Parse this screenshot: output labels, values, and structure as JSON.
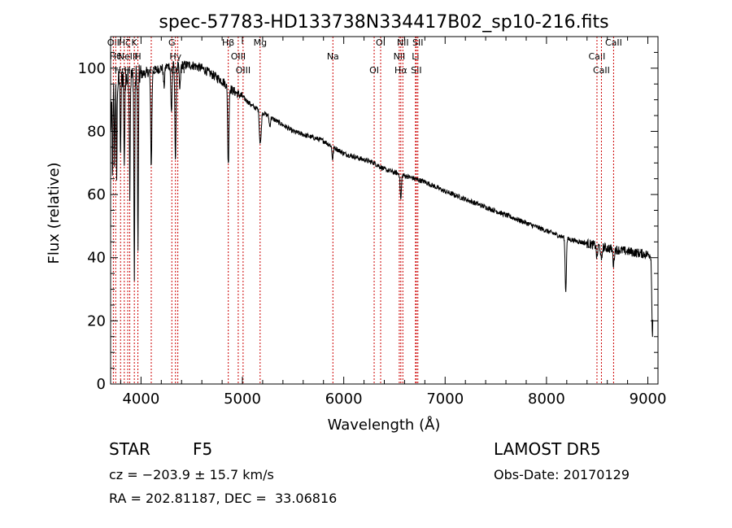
{
  "title": "spec-57783-HD133738N334417B02_sp10-216.fits",
  "info": {
    "object_type": "STAR",
    "subclass": "F5",
    "survey": "LAMOST DR5",
    "cz": "cz = −203.9 ± 15.7 km/s",
    "obs_date": "Obs-Date: 20170129",
    "coords": "RA = 202.81187, DEC =  33.06816"
  },
  "colors": {
    "spectrum": "#000000",
    "line_marker": "#cc0000",
    "axis": "#000000"
  },
  "chart_data": {
    "type": "line",
    "title": "spec-57783-HD133738N334417B02_sp10-216.fits",
    "xlabel": "Wavelength (Å)",
    "ylabel": "Flux (relative)",
    "xlim": [
      3700,
      9100
    ],
    "ylim": [
      0,
      110
    ],
    "xticks": [
      4000,
      5000,
      6000,
      7000,
      8000,
      9000
    ],
    "yticks": [
      0,
      20,
      40,
      60,
      80,
      100
    ],
    "grid": false,
    "continuum": [
      [
        3700,
        95
      ],
      [
        3800,
        96
      ],
      [
        3900,
        97
      ],
      [
        4000,
        98
      ],
      [
        4100,
        99
      ],
      [
        4200,
        100
      ],
      [
        4300,
        101
      ],
      [
        4400,
        101
      ],
      [
        4500,
        101
      ],
      [
        4600,
        100
      ],
      [
        4700,
        98
      ],
      [
        4800,
        96
      ],
      [
        4900,
        93
      ],
      [
        5000,
        91
      ],
      [
        5100,
        88
      ],
      [
        5200,
        86
      ],
      [
        5300,
        84
      ],
      [
        5400,
        82
      ],
      [
        5500,
        80
      ],
      [
        5600,
        79
      ],
      [
        5700,
        78
      ],
      [
        5800,
        77
      ],
      [
        5900,
        75
      ],
      [
        6000,
        73
      ],
      [
        6100,
        72
      ],
      [
        6200,
        71
      ],
      [
        6300,
        70
      ],
      [
        6400,
        68
      ],
      [
        6500,
        67
      ],
      [
        6600,
        66
      ],
      [
        6700,
        65
      ],
      [
        6800,
        64
      ],
      [
        6900,
        62.5
      ],
      [
        7000,
        61
      ],
      [
        7200,
        58.5
      ],
      [
        7400,
        56
      ],
      [
        7600,
        53.5
      ],
      [
        7800,
        51
      ],
      [
        8000,
        48.5
      ],
      [
        8200,
        46
      ],
      [
        8400,
        44.5
      ],
      [
        8600,
        43
      ],
      [
        8800,
        42
      ],
      [
        9000,
        41
      ],
      [
        9050,
        41
      ]
    ],
    "absorption_features": [
      [
        3705,
        15
      ],
      [
        3720,
        30
      ],
      [
        3740,
        25
      ],
      [
        3760,
        28
      ],
      [
        3798,
        22
      ],
      [
        3835,
        30
      ],
      [
        3889,
        35
      ],
      [
        3934,
        66
      ],
      [
        3970,
        58
      ],
      [
        4101,
        30
      ],
      [
        4227,
        6
      ],
      [
        4300,
        15
      ],
      [
        4340,
        30
      ],
      [
        4383,
        8
      ],
      [
        4861,
        25
      ],
      [
        5172,
        8
      ],
      [
        5183,
        7
      ],
      [
        5270,
        3
      ],
      [
        5890,
        4
      ],
      [
        6563,
        8
      ],
      [
        8190,
        17
      ],
      [
        8498,
        4
      ],
      [
        8542,
        5
      ],
      [
        8662,
        5
      ],
      [
        9045,
        25
      ]
    ],
    "line_markers": [
      {
        "wavelength": 3727,
        "label": "OII"
      },
      {
        "wavelength": 3750,
        "label": "Hθ"
      },
      {
        "wavelength": 3798,
        "label": "Hη"
      },
      {
        "wavelength": 3835,
        "label": "Hζ"
      },
      {
        "wavelength": 3869,
        "label": "NeIII"
      },
      {
        "wavelength": 3889,
        "label": "Hε"
      },
      {
        "wavelength": 3934,
        "label": "K"
      },
      {
        "wavelength": 3969,
        "label": "H"
      },
      {
        "wavelength": 4101,
        "label": "Hδ"
      },
      {
        "wavelength": 4304,
        "label": "G"
      },
      {
        "wavelength": 4340,
        "label": "Hγ"
      },
      {
        "wavelength": 4363,
        "label": "OIII"
      },
      {
        "wavelength": 4861,
        "label": "Hβ"
      },
      {
        "wavelength": 4959,
        "label": "OIII"
      },
      {
        "wavelength": 5007,
        "label": "OIII"
      },
      {
        "wavelength": 5175,
        "label": "Mg"
      },
      {
        "wavelength": 5893,
        "label": "Na"
      },
      {
        "wavelength": 6300,
        "label": "OI"
      },
      {
        "wavelength": 6364,
        "label": "OI"
      },
      {
        "wavelength": 6548,
        "label": "NII"
      },
      {
        "wavelength": 6563,
        "label": "Hα"
      },
      {
        "wavelength": 6583,
        "label": "NII"
      },
      {
        "wavelength": 6708,
        "label": "Li"
      },
      {
        "wavelength": 6716,
        "label": "SII"
      },
      {
        "wavelength": 6731,
        "label": "SII"
      },
      {
        "wavelength": 8498,
        "label": "CaII"
      },
      {
        "wavelength": 8542,
        "label": "CaII"
      },
      {
        "wavelength": 8662,
        "label": "CaII"
      }
    ]
  }
}
